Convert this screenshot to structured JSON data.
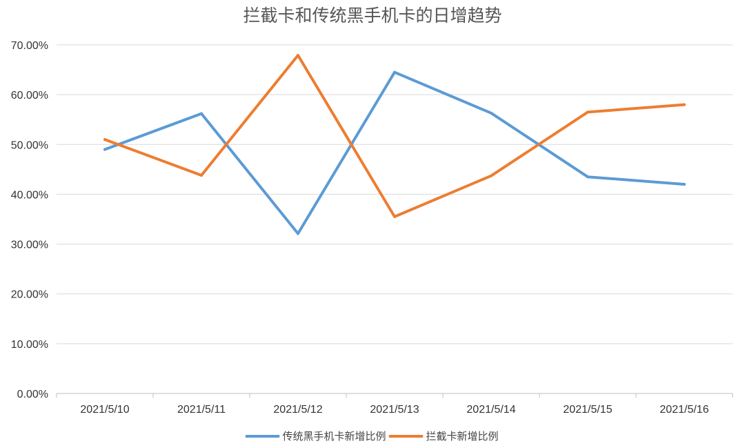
{
  "chart_data": {
    "type": "line",
    "title": "拦截卡和传统黑手机卡的日增趋势",
    "xlabel": "",
    "ylabel": "",
    "categories": [
      "2021/5/10",
      "2021/5/11",
      "2021/5/12",
      "2021/5/13",
      "2021/5/14",
      "2021/5/15",
      "2021/5/16"
    ],
    "ylim": [
      0,
      70
    ],
    "yticks": [
      0,
      10,
      20,
      30,
      40,
      50,
      60,
      70
    ],
    "ytick_labels": [
      "0.00%",
      "10.00%",
      "20.00%",
      "30.00%",
      "40.00%",
      "50.00%",
      "60.00%",
      "70.00%"
    ],
    "grid": true,
    "legend_position": "bottom",
    "series": [
      {
        "name": "传统黑手机卡新增比例",
        "color": "#5b9bd5",
        "values": [
          49,
          56.2,
          32.1,
          64.5,
          56.3,
          43.5,
          42
        ]
      },
      {
        "name": "拦截卡新增比例",
        "color": "#ed7d31",
        "values": [
          51,
          43.8,
          67.9,
          35.5,
          43.7,
          56.5,
          58
        ]
      }
    ]
  }
}
